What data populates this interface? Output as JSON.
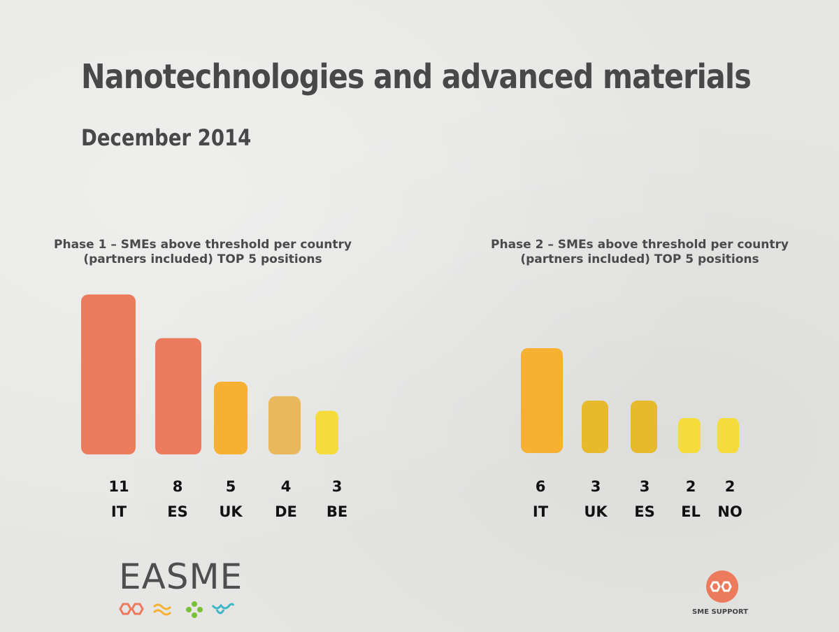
{
  "header": {
    "title": "Nanotechnologies and advanced materials",
    "subtitle": "December 2014"
  },
  "chart_data": [
    {
      "type": "bar",
      "title_line1": "Phase 1 – SMEs above threshold per country",
      "title_line2": "(partners included) TOP 5 positions",
      "categories": [
        "IT",
        "ES",
        "UK",
        "DE",
        "BE"
      ],
      "values": [
        11,
        8,
        5,
        4,
        3
      ],
      "colors": [
        "#ec7a5c",
        "#ec7a5c",
        "#f6b133",
        "#eab85c",
        "#f5dc3a"
      ]
    },
    {
      "type": "bar",
      "title_line1": "Phase 2 – SMEs above threshold per country",
      "title_line2": "(partners included) TOP 5 positions",
      "categories": [
        "IT",
        "UK",
        "ES",
        "EL",
        "NO"
      ],
      "values": [
        6,
        3,
        3,
        2,
        2
      ],
      "colors": [
        "#f6b133",
        "#e7b92d",
        "#e7b92d",
        "#f5dc3a",
        "#f5dc3a"
      ]
    }
  ],
  "logos": {
    "easme_text": "EASME",
    "sme_text": "SME SUPPORT",
    "easme_icon_colors": [
      "#ec7a5c",
      "#f6b133",
      "#7bbf3a",
      "#3ab6c6"
    ],
    "sme_color": "#ec7a5c"
  }
}
